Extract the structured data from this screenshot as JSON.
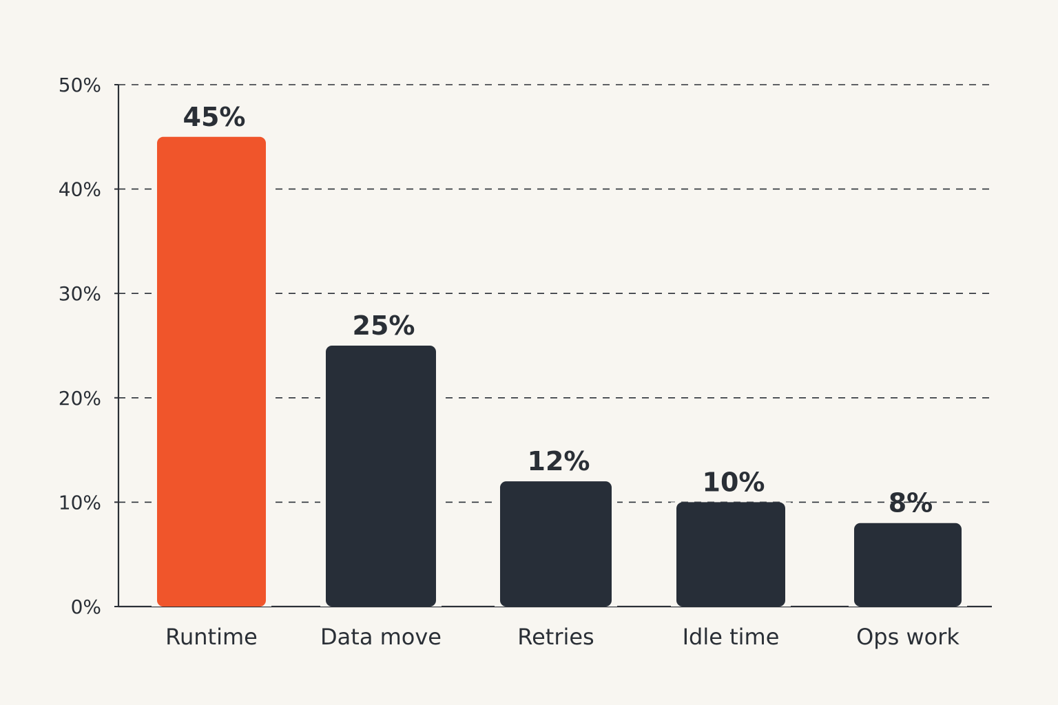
{
  "chart_data": {
    "type": "bar",
    "categories": [
      "Runtime",
      "Data move",
      "Retries",
      "Idle time",
      "Ops work"
    ],
    "values": [
      45,
      25,
      12,
      10,
      8
    ],
    "value_labels": [
      "45%",
      "25%",
      "12%",
      "10%",
      "8%"
    ],
    "ylim": [
      0,
      50
    ],
    "yticks": [
      0,
      10,
      20,
      30,
      40,
      50
    ],
    "ytick_labels": [
      "0%",
      "10%",
      "20%",
      "30%",
      "40%",
      "50%"
    ],
    "title": "",
    "xlabel": "",
    "ylabel": "",
    "grid": true,
    "grid_style": "dashed",
    "highlight_index": 0,
    "colors": {
      "highlight": "#f0552b",
      "default": "#272e38",
      "axis": "#2a2f36",
      "grid": "#2a2f36",
      "background": "#f8f6f1"
    }
  }
}
